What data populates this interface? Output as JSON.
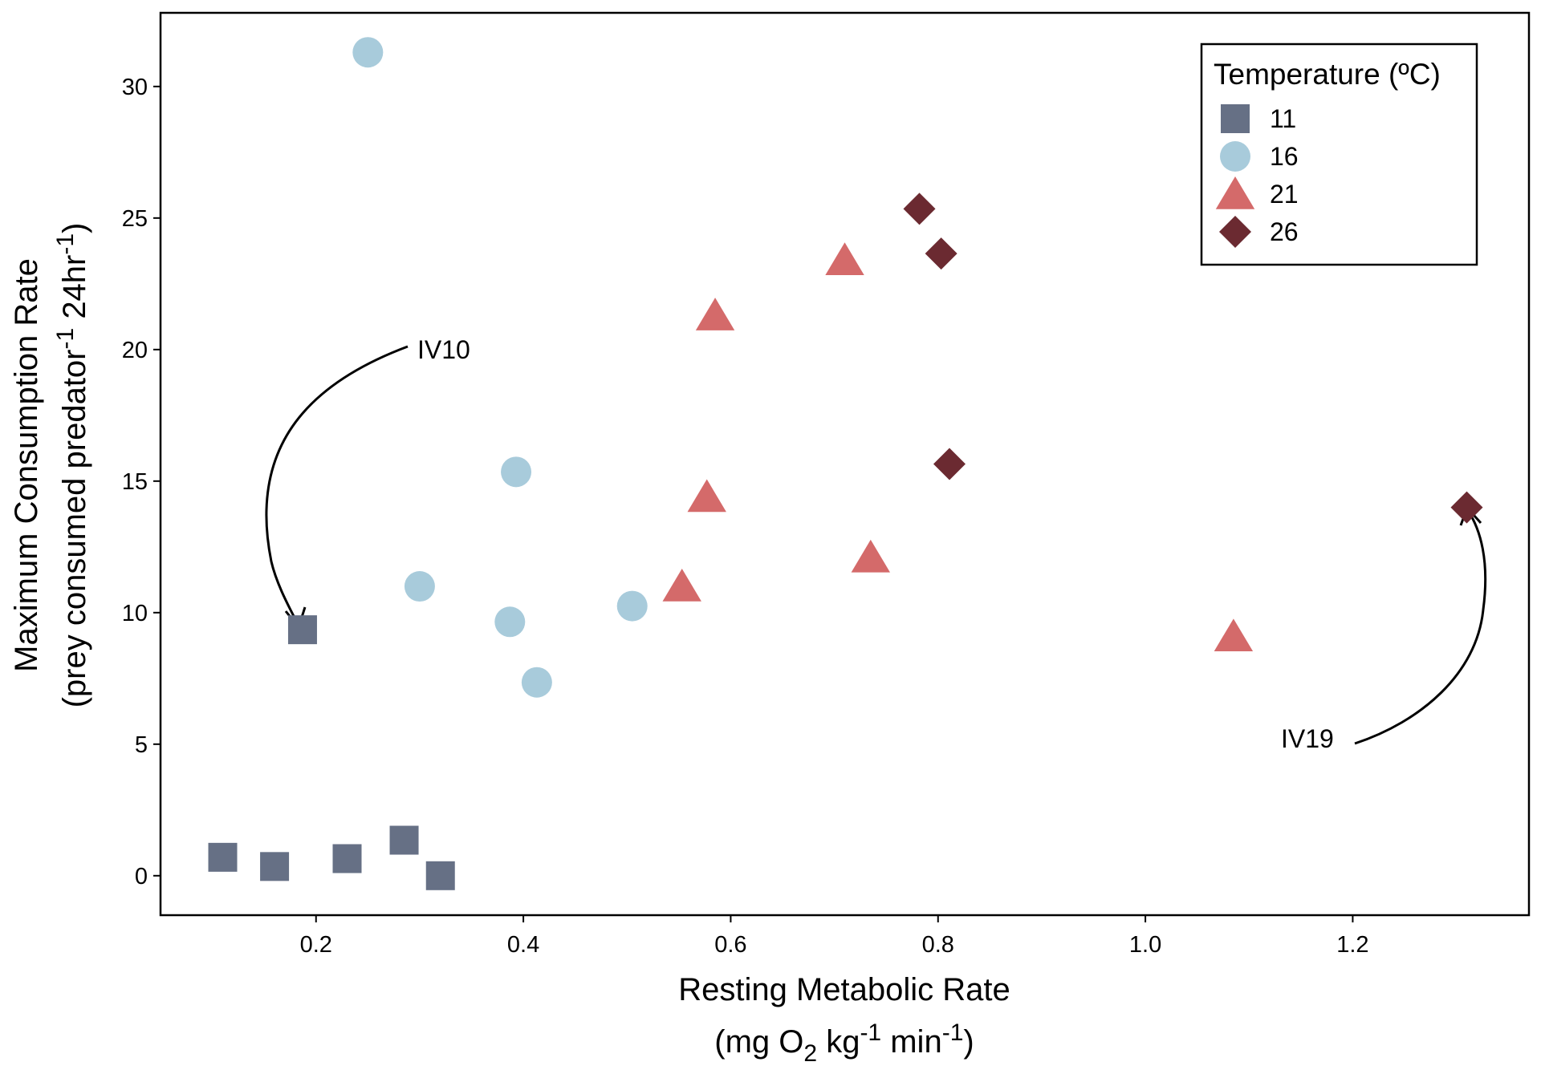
{
  "chart_data": {
    "type": "scatter",
    "title": "",
    "xlabel": {
      "line1": "Resting Metabolic Rate",
      "line2": {
        "open": "(mg O",
        "sub": "2",
        "mid1": " kg",
        "sup1": "-1",
        "mid2": " min",
        "sup2": "-1",
        "close": ")"
      }
    },
    "ylabel": {
      "line1": "Maximum Consumption Rate",
      "line2": {
        "open": "(prey consumed predator",
        "sup1": "-1",
        "mid": " 24hr",
        "sup2": "-1",
        "close": ")"
      }
    },
    "xlim": [
      0.05,
      1.37
    ],
    "ylim": [
      -1.5,
      32.8
    ],
    "xticks": [
      0.2,
      0.4,
      0.6,
      0.8,
      1.0,
      1.2
    ],
    "xtick_labels": [
      "0.2",
      "0.4",
      "0.6",
      "0.8",
      "1.0",
      "1.2"
    ],
    "yticks": [
      0,
      5,
      10,
      15,
      20,
      25,
      30
    ],
    "ytick_labels": [
      "0",
      "5",
      "10",
      "15",
      "20",
      "25",
      "30"
    ],
    "grid": false,
    "legend": {
      "title": "Temperature (ºC)",
      "placement": "top-right"
    },
    "series": [
      {
        "name": "11",
        "marker": "square",
        "color": "#667085",
        "points": [
          [
            0.11,
            0.7
          ],
          [
            0.16,
            0.35
          ],
          [
            0.23,
            0.65
          ],
          [
            0.285,
            1.35
          ],
          [
            0.32,
            0.0
          ],
          [
            0.187,
            9.35
          ]
        ]
      },
      {
        "name": "16",
        "marker": "circle",
        "color": "#a8cbdb",
        "points": [
          [
            0.25,
            31.3
          ],
          [
            0.393,
            15.35
          ],
          [
            0.3,
            11.0
          ],
          [
            0.387,
            9.65
          ],
          [
            0.505,
            10.25
          ],
          [
            0.413,
            7.35
          ]
        ]
      },
      {
        "name": "21",
        "marker": "triangle",
        "color": "#d46a6a",
        "points": [
          [
            0.71,
            23.4
          ],
          [
            0.585,
            21.3
          ],
          [
            0.577,
            14.4
          ],
          [
            0.553,
            11.0
          ],
          [
            0.735,
            12.1
          ],
          [
            1.085,
            9.1
          ]
        ]
      },
      {
        "name": "26",
        "marker": "diamond",
        "color": "#6b2a31",
        "points": [
          [
            0.782,
            25.35
          ],
          [
            0.803,
            23.65
          ],
          [
            0.811,
            15.65
          ],
          [
            1.31,
            14.0
          ]
        ]
      }
    ],
    "annotations": [
      {
        "text": "IV10",
        "points_to": [
          0.187,
          9.35
        ]
      },
      {
        "text": "IV19",
        "points_to": [
          1.31,
          14.0
        ]
      }
    ]
  }
}
